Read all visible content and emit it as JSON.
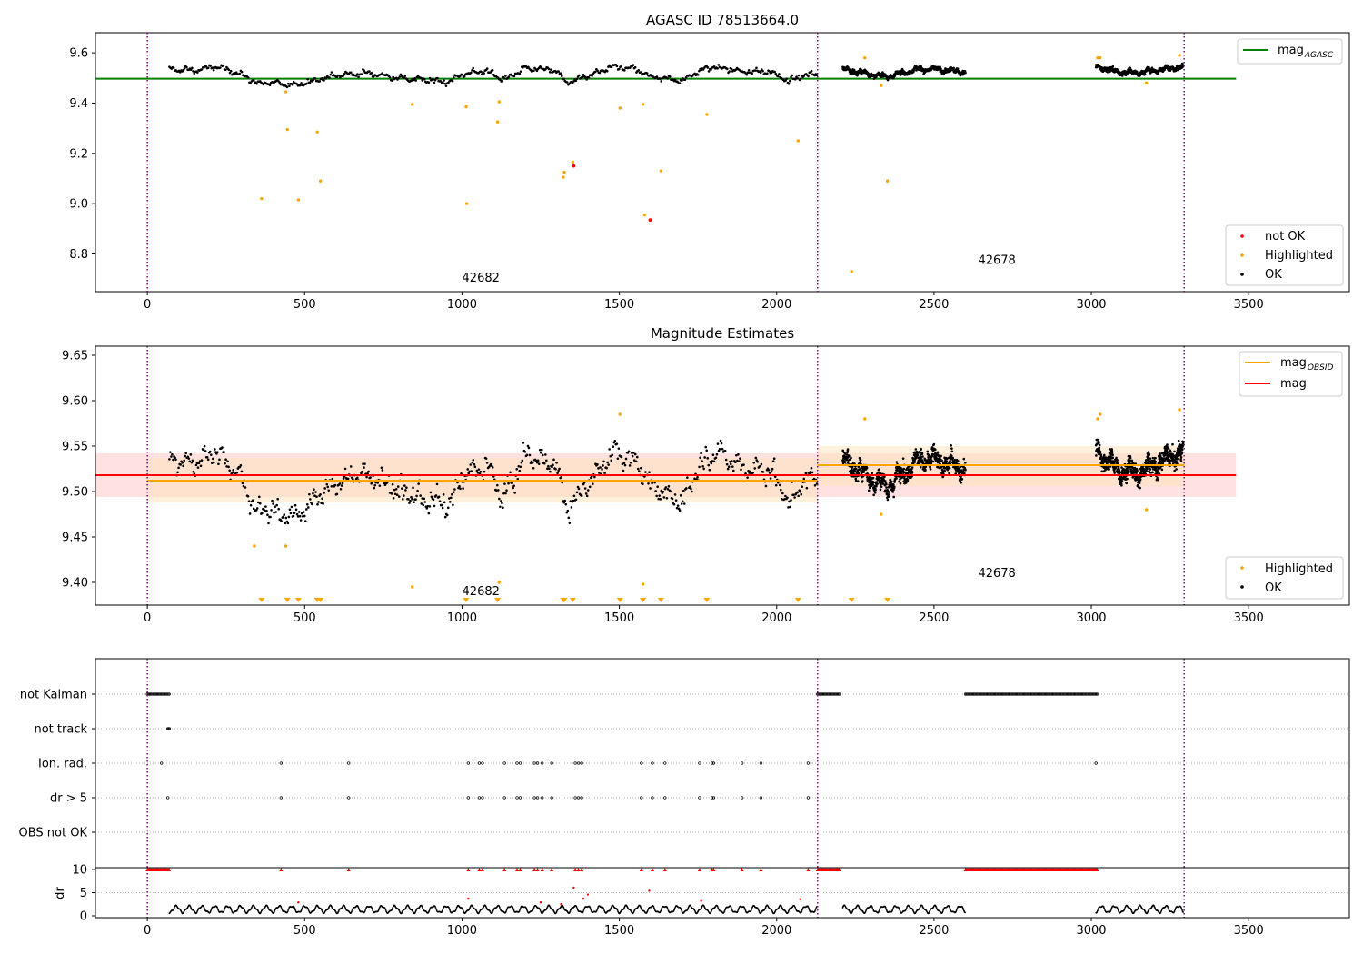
{
  "chart_data": [
    {
      "type": "scatter",
      "title": "AGASC ID 78513664.0",
      "xlim": [
        -165,
        3820
      ],
      "ylim": [
        8.65,
        9.68
      ],
      "xticks": [
        0,
        500,
        1000,
        1500,
        2000,
        2500,
        3000,
        3500
      ],
      "yticks": [
        8.8,
        9.0,
        9.2,
        9.4,
        9.6
      ],
      "obsid_boundaries": [
        0,
        2130,
        3295
      ],
      "obsid_labels": [
        {
          "x": 1060,
          "y": 8.69,
          "text": "42682"
        },
        {
          "x": 2700,
          "y": 8.76,
          "text": "42678"
        }
      ],
      "reference_line": {
        "name": "mag_AGASC",
        "y": 9.497,
        "x": [
          -165,
          3460
        ],
        "color": "#008000"
      },
      "legend": {
        "top_right": [
          "mag_AGASC"
        ],
        "bottom_right": [
          "not OK",
          "Highlighted",
          "OK"
        ]
      },
      "series": [
        {
          "name": "not OK",
          "color": "#ff0000",
          "x": [
            1355,
            1598
          ],
          "y": [
            9.15,
            8.935
          ]
        },
        {
          "name": "Highlighted",
          "color": "#ffa500",
          "x": [
            363,
            440,
            445,
            540,
            550,
            480,
            842,
            1013,
            1015,
            1113,
            1118,
            1322,
            1325,
            1352,
            1502,
            1575,
            1580,
            1632,
            1778,
            2068,
            2238,
            2280,
            2332,
            2352,
            3020,
            3028,
            3175,
            3280
          ],
          "y": [
            9.02,
            9.445,
            9.295,
            9.285,
            9.09,
            9.015,
            9.395,
            9.385,
            9.0,
            9.325,
            9.405,
            9.105,
            9.125,
            9.165,
            9.38,
            9.395,
            8.955,
            9.13,
            9.355,
            9.25,
            8.73,
            9.58,
            9.47,
            9.09,
            9.58,
            9.58,
            9.48,
            9.59
          ]
        },
        {
          "name": "OK",
          "color": "#000000",
          "generated_from": "segments",
          "n_per_segment": 600,
          "segments": [
            [
              70,
              2128
            ],
            [
              2210,
              2600
            ],
            [
              3015,
              3292
            ]
          ],
          "trend_x": [
            70,
            150,
            220,
            300,
            345,
            400,
            460,
            530,
            600,
            700,
            800,
            900,
            960,
            1000,
            1080,
            1130,
            1200,
            1300,
            1330,
            1380,
            1430,
            1480,
            1550,
            1600,
            1650,
            1700,
            1750,
            1800,
            1900,
            1980,
            2040,
            2080,
            2128,
            2210,
            2300,
            2350,
            2400,
            2450,
            2500,
            2600,
            3015,
            3080,
            3150,
            3200,
            3292
          ],
          "trend_y": [
            9.535,
            9.53,
            9.545,
            9.515,
            9.48,
            9.48,
            9.47,
            9.49,
            9.51,
            9.52,
            9.5,
            9.49,
            9.485,
            9.515,
            9.53,
            9.49,
            9.54,
            9.53,
            9.48,
            9.5,
            9.52,
            9.545,
            9.535,
            9.505,
            9.495,
            9.49,
            9.525,
            9.545,
            9.525,
            9.525,
            9.485,
            9.51,
            9.515,
            9.535,
            9.515,
            9.505,
            9.52,
            9.535,
            9.535,
            9.525,
            9.545,
            9.525,
            9.52,
            9.53,
            9.545
          ],
          "noise": 0.01,
          "y_offset": 0.0
        }
      ]
    },
    {
      "type": "scatter",
      "title": "Magnitude Estimates",
      "xlim": [
        -165,
        3820
      ],
      "ylim": [
        9.375,
        9.66
      ],
      "xticks": [
        0,
        500,
        1000,
        1500,
        2000,
        2500,
        3000,
        3500
      ],
      "yticks": [
        9.4,
        9.45,
        9.5,
        9.55,
        9.6,
        9.65
      ],
      "obsid_boundaries": [
        0,
        2130,
        3295
      ],
      "obsid_labels": [
        {
          "x": 1060,
          "y": 9.386,
          "text": "42682"
        },
        {
          "x": 2700,
          "y": 9.406,
          "text": "42678"
        }
      ],
      "bands": [
        {
          "name": "mag",
          "x": [
            -165,
            3460
          ],
          "y": [
            9.494,
            9.542
          ],
          "color": "#ffc8c8"
        },
        {
          "name": "mag_OBSID 42682",
          "x": [
            0,
            2130
          ],
          "y": [
            9.488,
            9.537
          ],
          "color": "#ffe3bf"
        },
        {
          "name": "mag_OBSID 42678",
          "x": [
            2130,
            3295
          ],
          "y": [
            9.506,
            9.55
          ],
          "color": "#ffe3bf"
        }
      ],
      "lines": [
        {
          "name": "mag_OBSID",
          "color": "#ffa500",
          "segments": [
            {
              "x": [
                0,
                2130
              ],
              "y": 9.512
            },
            {
              "x": [
                2130,
                3295
              ],
              "y": 9.529
            }
          ]
        },
        {
          "name": "mag",
          "color": "#ff0000",
          "segments": [
            {
              "x": [
                -165,
                3460
              ],
              "y": 9.518
            }
          ]
        }
      ],
      "legend": {
        "top_right": [
          "mag_OBSID",
          "mag"
        ],
        "bottom_right": [
          "Highlighted",
          "OK"
        ]
      },
      "series": [
        {
          "name": "Highlighted",
          "color": "#ffa500",
          "x": [
            340,
            440,
            842,
            1118,
            1502,
            1575,
            2280,
            2332,
            3020,
            3028,
            3175,
            3280
          ],
          "y": [
            9.44,
            9.44,
            9.395,
            9.4,
            9.585,
            9.398,
            9.58,
            9.475,
            9.58,
            9.585,
            9.48,
            9.59
          ]
        },
        {
          "name": "Highlighted below axis",
          "color": "#ffa500",
          "marker": "triangle-down",
          "x": [
            363,
            445,
            480,
            540,
            550,
            1013,
            1113,
            1322,
            1325,
            1352,
            1502,
            1575,
            1632,
            1778,
            2068,
            2238,
            2352
          ],
          "y": [
            9.378,
            9.378,
            9.378,
            9.378,
            9.378,
            9.378,
            9.378,
            9.378,
            9.378,
            9.378,
            9.378,
            9.378,
            9.378,
            9.378,
            9.378,
            9.378,
            9.378
          ]
        },
        {
          "name": "OK",
          "color": "#000000",
          "generated_from": "segments",
          "n_per_segment": 700,
          "segments": [
            [
              70,
              2128
            ],
            [
              2210,
              2600
            ],
            [
              3015,
              3292
            ]
          ],
          "trend_x": [
            70,
            150,
            220,
            300,
            345,
            400,
            460,
            530,
            600,
            700,
            800,
            900,
            960,
            1000,
            1080,
            1130,
            1200,
            1300,
            1330,
            1380,
            1430,
            1480,
            1550,
            1600,
            1650,
            1700,
            1750,
            1800,
            1900,
            1980,
            2040,
            2080,
            2128,
            2210,
            2300,
            2350,
            2400,
            2450,
            2500,
            2600,
            3015,
            3080,
            3150,
            3200,
            3292
          ],
          "trend_y": [
            9.535,
            9.53,
            9.545,
            9.515,
            9.48,
            9.48,
            9.47,
            9.49,
            9.51,
            9.52,
            9.5,
            9.49,
            9.485,
            9.515,
            9.53,
            9.49,
            9.54,
            9.53,
            9.48,
            9.5,
            9.52,
            9.545,
            9.535,
            9.505,
            9.495,
            9.49,
            9.525,
            9.545,
            9.525,
            9.525,
            9.485,
            9.51,
            9.515,
            9.535,
            9.515,
            9.505,
            9.52,
            9.535,
            9.535,
            9.525,
            9.545,
            9.525,
            9.52,
            9.53,
            9.545
          ],
          "noise": 0.012,
          "y_offset": 0.0
        }
      ]
    },
    {
      "type": "scatter",
      "title": "",
      "xlim": [
        -165,
        3820
      ],
      "xticks": [
        0,
        500,
        1000,
        1500,
        2000,
        2500,
        3000,
        3500
      ],
      "obsid_boundaries": [
        0,
        2130,
        3295
      ],
      "flag_rows": [
        "not Kalman",
        "not track",
        "Ion. rad.",
        "dr > 5",
        "OBS not OK"
      ],
      "flags": {
        "not Kalman": {
          "ranges": [
            [
              0,
              70
            ],
            [
              2130,
              2200
            ],
            [
              2600,
              3020
            ]
          ]
        },
        "not track": {
          "x": [
            65,
            68,
            70
          ]
        },
        "Ion. rad.": {
          "x": [
            45,
            425,
            640,
            1020,
            1055,
            1065,
            1135,
            1175,
            1185,
            1230,
            1240,
            1255,
            1285,
            1360,
            1370,
            1380,
            1570,
            1605,
            1645,
            1755,
            1795,
            1800,
            1890,
            1950,
            2100,
            3015
          ]
        },
        "dr > 5": {
          "x": [
            65,
            425,
            640,
            1020,
            1055,
            1065,
            1135,
            1175,
            1185,
            1230,
            1240,
            1255,
            1285,
            1360,
            1370,
            1380,
            1570,
            1605,
            1645,
            1755,
            1795,
            1800,
            1890,
            1950,
            2100
          ]
        },
        "OBS not OK": {
          "x": []
        }
      },
      "dr": {
        "ylabel": "dr",
        "ylim": [
          0,
          10
        ],
        "yticks": [
          0,
          5,
          10
        ],
        "capped_value": 10,
        "capped_color": "#ff0000",
        "capped_ranges": [
          [
            0,
            70
          ],
          [
            2130,
            2200
          ],
          [
            2600,
            3020
          ]
        ],
        "capped_x": [
          425,
          640,
          1020,
          1055,
          1065,
          1135,
          1175,
          1185,
          1230,
          1240,
          1255,
          1285,
          1360,
          1370,
          1380,
          1570,
          1605,
          1645,
          1755,
          1795,
          1800,
          1890,
          1950,
          2100
        ],
        "outliers_x": [
          480,
          1020,
          1250,
          1315,
          1355,
          1385,
          1400,
          1595,
          1760,
          2075
        ],
        "outliers_y": [
          2.9,
          3.7,
          2.9,
          2.5,
          6.1,
          3.7,
          4.6,
          5.4,
          3.2,
          3.6
        ],
        "outlier_color": "#ff0000",
        "trace_segments": [
          [
            70,
            2128
          ],
          [
            2210,
            2600
          ],
          [
            3015,
            3292
          ]
        ],
        "trace_level": 1.4,
        "trace_amplitude": 0.7,
        "trace_color": "#000000"
      }
    }
  ],
  "legend_labels": {
    "mag_agasc_main": "mag",
    "mag_agasc_sub": "AGASC",
    "mag_obsid_main": "mag",
    "mag_obsid_sub": "OBSID",
    "mag": "mag",
    "not_ok": "not OK",
    "highlighted": "Highlighted",
    "ok": "OK"
  }
}
